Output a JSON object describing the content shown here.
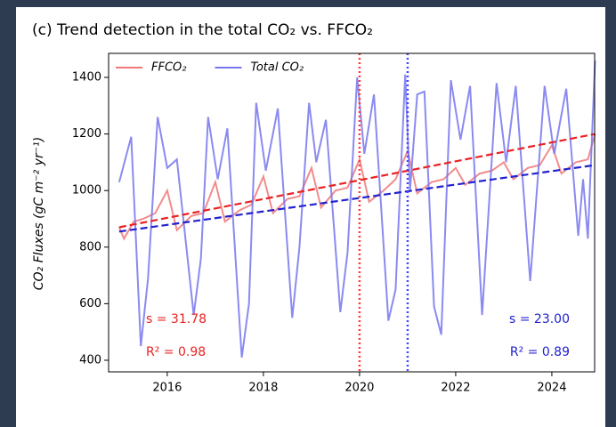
{
  "chart_data": {
    "type": "line",
    "title": "(c) Trend detection in the total CO₂ vs. FFCO₂",
    "y_label": "CO₂ Fluxes (gC m⁻² yr⁻¹)",
    "xlim": [
      2014.78,
      2024.89
    ],
    "xticks": [
      2016,
      2018,
      2020,
      2022,
      2024
    ],
    "ylim": [
      359,
      1485
    ],
    "yticks": [
      400,
      600,
      800,
      1000,
      1200,
      1400
    ],
    "legend": "upper left",
    "series": [
      {
        "name": "FFCO₂",
        "color": "#f07878",
        "x": [
          2015.0,
          2015.1,
          2015.3,
          2015.5,
          2015.75,
          2016.0,
          2016.2,
          2016.5,
          2016.75,
          2017.0,
          2017.2,
          2017.5,
          2017.75,
          2018.0,
          2018.2,
          2018.5,
          2018.75,
          2019.0,
          2019.2,
          2019.5,
          2019.75,
          2020.0,
          2020.2,
          2020.5,
          2020.75,
          2021.0,
          2021.2,
          2021.5,
          2021.75,
          2022.0,
          2022.2,
          2022.5,
          2022.75,
          2023.0,
          2023.2,
          2023.5,
          2023.75,
          2024.0,
          2024.2,
          2024.5,
          2024.75,
          2024.9
        ],
        "values": [
          870,
          830,
          890,
          900,
          920,
          1000,
          860,
          910,
          920,
          1030,
          890,
          930,
          950,
          1050,
          920,
          970,
          980,
          1080,
          940,
          1000,
          1010,
          1110,
          960,
          1000,
          1040,
          1140,
          990,
          1030,
          1040,
          1080,
          1020,
          1060,
          1070,
          1100,
          1040,
          1080,
          1090,
          1160,
          1060,
          1100,
          1110,
          1200
        ]
      },
      {
        "name": "Total CO₂",
        "color": "#7676ee",
        "x": [
          2015.0,
          2015.25,
          2015.45,
          2015.6,
          2015.8,
          2016.0,
          2016.2,
          2016.55,
          2016.7,
          2016.85,
          2017.05,
          2017.25,
          2017.55,
          2017.7,
          2017.85,
          2018.05,
          2018.3,
          2018.6,
          2018.75,
          2018.95,
          2019.1,
          2019.3,
          2019.6,
          2019.75,
          2019.95,
          2020.1,
          2020.3,
          2020.6,
          2020.75,
          2020.95,
          2021.05,
          2021.2,
          2021.35,
          2021.55,
          2021.7,
          2021.9,
          2022.1,
          2022.3,
          2022.55,
          2022.85,
          2023.05,
          2023.25,
          2023.55,
          2023.85,
          2024.05,
          2024.3,
          2024.55,
          2024.65,
          2024.75,
          2024.9
        ],
        "values": [
          1030,
          1190,
          450,
          690,
          1260,
          1080,
          1110,
          560,
          760,
          1260,
          1040,
          1220,
          410,
          600,
          1310,
          1070,
          1290,
          550,
          800,
          1310,
          1100,
          1250,
          570,
          780,
          1400,
          1130,
          1340,
          540,
          650,
          1410,
          1000,
          1340,
          1350,
          590,
          490,
          1390,
          1180,
          1370,
          560,
          1380,
          1100,
          1370,
          680,
          1370,
          1130,
          1360,
          840,
          1040,
          830,
          1460
        ]
      }
    ],
    "trend_lines": [
      {
        "color": "#e82222",
        "x": [
          2015.0,
          2024.9
        ],
        "values": [
          870,
          1200
        ]
      },
      {
        "color": "#2222d0",
        "x": [
          2015.0,
          2024.9
        ],
        "values": [
          855,
          1090
        ]
      }
    ],
    "vlines": [
      {
        "color": "#ff3a3a",
        "x": 2020
      },
      {
        "color": "#4646ff",
        "x": 2021
      }
    ],
    "annotations": [
      {
        "text": "s = 31.78",
        "color": "#e82222"
      },
      {
        "text": "R² = 0.98",
        "color": "#e82222"
      },
      {
        "text": "s = 23.00",
        "color": "#2222d0"
      },
      {
        "text": "R² = 0.89",
        "color": "#2222d0"
      }
    ]
  }
}
